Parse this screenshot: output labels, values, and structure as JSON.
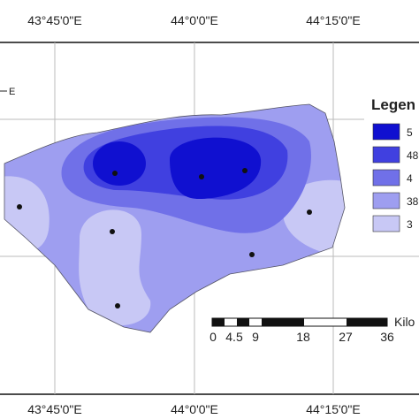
{
  "graticule": {
    "top": [
      "43°45'0\"E",
      "44°0'0\"E",
      "44°15'0\"E"
    ],
    "bottom": [
      "43°45'0\"E",
      "44°0'0\"E",
      "44°15'0\"E"
    ],
    "left": "E"
  },
  "legend": {
    "title": "Legen",
    "items": [
      "5",
      "48",
      "4",
      "38",
      "3"
    ]
  },
  "scale_bar": {
    "labels": [
      "0",
      "4.5",
      "9",
      "18",
      "27",
      "36"
    ],
    "unit": "Kilo"
  }
}
